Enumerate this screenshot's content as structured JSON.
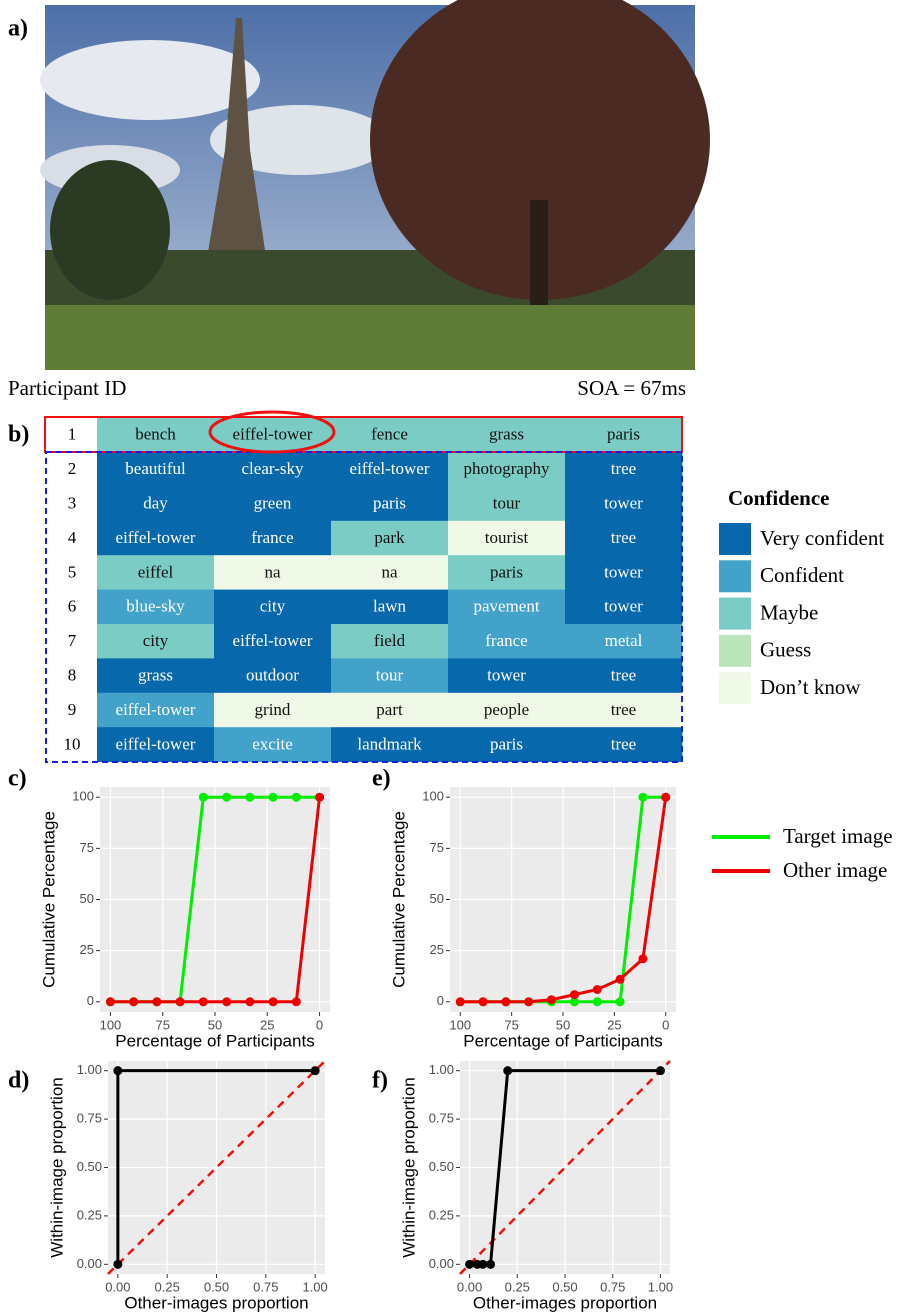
{
  "panel_labels": {
    "a": "a)",
    "b": "b)",
    "c": "c)",
    "d": "d)",
    "e": "e)",
    "f": "f)"
  },
  "photo": {
    "participant": "Participant ID",
    "soa": "SOA = 67ms"
  },
  "legend": {
    "title": "Confidence",
    "levels": [
      {
        "name": "Very confident",
        "color": "#0868ac"
      },
      {
        "name": "Confident",
        "color": "#43a2ca"
      },
      {
        "name": "Maybe",
        "color": "#7bccc4"
      },
      {
        "name": "Guess",
        "color": "#bae4bc"
      },
      {
        "name": "Don’t know",
        "color": "#f0f9e8"
      }
    ]
  },
  "table": {
    "rows": [
      {
        "id": "1",
        "cells": [
          {
            "word": "bench",
            "level": 2
          },
          {
            "word": "eiffel-tower",
            "level": 2
          },
          {
            "word": "fence",
            "level": 2
          },
          {
            "word": "grass",
            "level": 2
          },
          {
            "word": "paris",
            "level": 2
          }
        ]
      },
      {
        "id": "2",
        "cells": [
          {
            "word": "beautiful",
            "level": 0
          },
          {
            "word": "clear-sky",
            "level": 0
          },
          {
            "word": "eiffel-tower",
            "level": 0
          },
          {
            "word": "photography",
            "level": 2
          },
          {
            "word": "tree",
            "level": 0
          }
        ]
      },
      {
        "id": "3",
        "cells": [
          {
            "word": "day",
            "level": 0
          },
          {
            "word": "green",
            "level": 0
          },
          {
            "word": "paris",
            "level": 0
          },
          {
            "word": "tour",
            "level": 2
          },
          {
            "word": "tower",
            "level": 0
          }
        ]
      },
      {
        "id": "4",
        "cells": [
          {
            "word": "eiffel-tower",
            "level": 0
          },
          {
            "word": "france",
            "level": 0
          },
          {
            "word": "park",
            "level": 2
          },
          {
            "word": "tourist",
            "level": 4
          },
          {
            "word": "tree",
            "level": 0
          }
        ]
      },
      {
        "id": "5",
        "cells": [
          {
            "word": "eiffel",
            "level": 2
          },
          {
            "word": "na",
            "level": 4
          },
          {
            "word": "na",
            "level": 4
          },
          {
            "word": "paris",
            "level": 2
          },
          {
            "word": "tower",
            "level": 0
          }
        ]
      },
      {
        "id": "6",
        "cells": [
          {
            "word": "blue-sky",
            "level": 1
          },
          {
            "word": "city",
            "level": 0
          },
          {
            "word": "lawn",
            "level": 0
          },
          {
            "word": "pavement",
            "level": 1
          },
          {
            "word": "tower",
            "level": 0
          }
        ]
      },
      {
        "id": "7",
        "cells": [
          {
            "word": "city",
            "level": 2
          },
          {
            "word": "eiffel-tower",
            "level": 0
          },
          {
            "word": "field",
            "level": 2
          },
          {
            "word": "france",
            "level": 1
          },
          {
            "word": "metal",
            "level": 1
          }
        ]
      },
      {
        "id": "8",
        "cells": [
          {
            "word": "grass",
            "level": 0
          },
          {
            "word": "outdoor",
            "level": 0
          },
          {
            "word": "tour",
            "level": 1
          },
          {
            "word": "tower",
            "level": 0
          },
          {
            "word": "tree",
            "level": 0
          }
        ]
      },
      {
        "id": "9",
        "cells": [
          {
            "word": "eiffel-tower",
            "level": 1
          },
          {
            "word": "grind",
            "level": 4
          },
          {
            "word": "part",
            "level": 4
          },
          {
            "word": "people",
            "level": 4
          },
          {
            "word": "tree",
            "level": 4
          }
        ]
      },
      {
        "id": "10",
        "cells": [
          {
            "word": "eiffel-tower",
            "level": 0
          },
          {
            "word": "excite",
            "level": 1
          },
          {
            "word": "landmark",
            "level": 0
          },
          {
            "word": "paris",
            "level": 0
          },
          {
            "word": "tree",
            "level": 0
          }
        ]
      }
    ]
  },
  "chart_data": [
    {
      "type": "line",
      "x_label": "Percentage of Participants",
      "y_label": "Cumulative Percentage",
      "x": [
        100,
        88.9,
        77.8,
        66.7,
        55.6,
        44.4,
        33.3,
        22.2,
        11.1,
        0
      ],
      "series": [
        {
          "name": "Target image",
          "color": "#00ee00",
          "values": [
            0,
            0,
            0,
            0,
            100,
            100,
            100,
            100,
            100,
            100
          ]
        },
        {
          "name": "Other image",
          "color": "#ee0000",
          "values": [
            0,
            0,
            0,
            0,
            0,
            0,
            0,
            0,
            0,
            100
          ]
        }
      ],
      "xlim": [
        105,
        -5
      ],
      "ylim": [
        -5,
        105
      ],
      "xticks": [
        100,
        75,
        50,
        25,
        0
      ],
      "yticks": [
        0,
        25,
        50,
        75,
        100
      ],
      "grid": true,
      "markers": true
    },
    {
      "type": "line",
      "x_label": "Percentage of Participants",
      "y_label": "Cumulative Percentage",
      "x": [
        100,
        88.9,
        77.8,
        66.7,
        55.6,
        44.4,
        33.3,
        22.2,
        11.1,
        0
      ],
      "series": [
        {
          "color": "#00ee00",
          "values": [
            0,
            0,
            0,
            0,
            0,
            0,
            0,
            0,
            100,
            100
          ]
        },
        {
          "color": "#ee0000",
          "values": [
            0,
            0,
            0,
            0,
            1,
            3.5,
            6,
            11,
            21,
            100
          ]
        }
      ],
      "xlim": [
        105,
        -5
      ],
      "ylim": [
        -5,
        105
      ],
      "xticks": [
        100,
        75,
        50,
        25,
        0
      ],
      "yticks": [
        0,
        25,
        50,
        75,
        100
      ],
      "grid": true,
      "markers": true
    },
    {
      "type": "line",
      "x_label": "Other-images proportion",
      "y_label": "Within-image proportion",
      "x": [
        0,
        0,
        1
      ],
      "series": [
        {
          "color": "#000000",
          "values": [
            0,
            1,
            1
          ]
        }
      ],
      "xlim": [
        -0.05,
        1.05
      ],
      "ylim": [
        -0.05,
        1.05
      ],
      "xticks": [
        {
          "value": 0,
          "label": "0.00"
        },
        {
          "value": 0.25,
          "label": "0.25"
        },
        {
          "value": 0.5,
          "label": "0.50"
        },
        {
          "value": 0.75,
          "label": "0.75"
        },
        {
          "value": 1,
          "label": "1.00"
        }
      ],
      "yticks": [
        {
          "value": 0,
          "label": "0.00"
        },
        {
          "value": 0.25,
          "label": "0.25"
        },
        {
          "value": 0.5,
          "label": "0.50"
        },
        {
          "value": 0.75,
          "label": "0.75"
        },
        {
          "value": 1,
          "label": "1.00"
        }
      ],
      "grid": true,
      "markers": true,
      "diagonal": true
    },
    {
      "type": "line",
      "x_label": "Other-images proportion",
      "y_label": "Within-image proportion",
      "x": [
        0,
        0.04,
        0.07,
        0.11,
        0.2,
        1
      ],
      "series": [
        {
          "color": "#000000",
          "values": [
            0,
            0,
            0,
            0,
            1,
            1
          ]
        }
      ],
      "xlim": [
        -0.05,
        1.05
      ],
      "ylim": [
        -0.05,
        1.05
      ],
      "xticks": [
        {
          "value": 0,
          "label": "0.00"
        },
        {
          "value": 0.25,
          "label": "0.25"
        },
        {
          "value": 0.5,
          "label": "0.50"
        },
        {
          "value": 0.75,
          "label": "0.75"
        },
        {
          "value": 1,
          "label": "1.00"
        }
      ],
      "yticks": [
        {
          "value": 0,
          "label": "0.00"
        },
        {
          "value": 0.25,
          "label": "0.25"
        },
        {
          "value": 0.5,
          "label": "0.50"
        },
        {
          "value": 0.75,
          "label": "0.75"
        },
        {
          "value": 1,
          "label": "1.00"
        }
      ],
      "grid": true,
      "markers": true,
      "diagonal": true
    }
  ]
}
